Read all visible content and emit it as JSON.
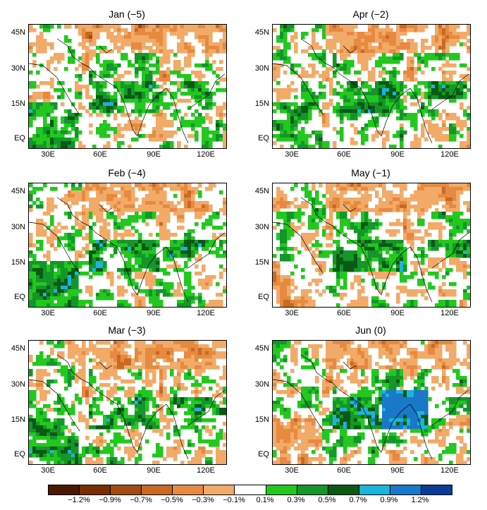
{
  "panels": [
    {
      "title": "Jan (−5)",
      "pattern": "jan"
    },
    {
      "title": "Apr (−2)",
      "pattern": "apr"
    },
    {
      "title": "Feb (−4)",
      "pattern": "feb"
    },
    {
      "title": "May (−1)",
      "pattern": "may"
    },
    {
      "title": "Mar (−3)",
      "pattern": "mar"
    },
    {
      "title": "Jun (0)",
      "pattern": "jun"
    }
  ],
  "axes": {
    "lat_labels": [
      "45N",
      "30N",
      "15N",
      "EQ"
    ],
    "lon_labels": [
      "30E",
      "60E",
      "90E",
      "120E"
    ]
  },
  "colorbar": {
    "colors": [
      "#4a1a00",
      "#7a2e00",
      "#a04c10",
      "#c86a24",
      "#e68a40",
      "#f2aa68",
      "#ffffff",
      "#22c81e",
      "#14962a",
      "#0a5a14",
      "#1ab4dc",
      "#1a78c8",
      "#0a3c96"
    ],
    "labels": [
      "−1.2%",
      "−0.9%",
      "−0.7%",
      "−0.5%",
      "−0.3%",
      "−0.1%",
      "0.1%",
      "0.3%",
      "0.5%",
      "0.7%",
      "0.9%",
      "1.2%"
    ]
  }
}
